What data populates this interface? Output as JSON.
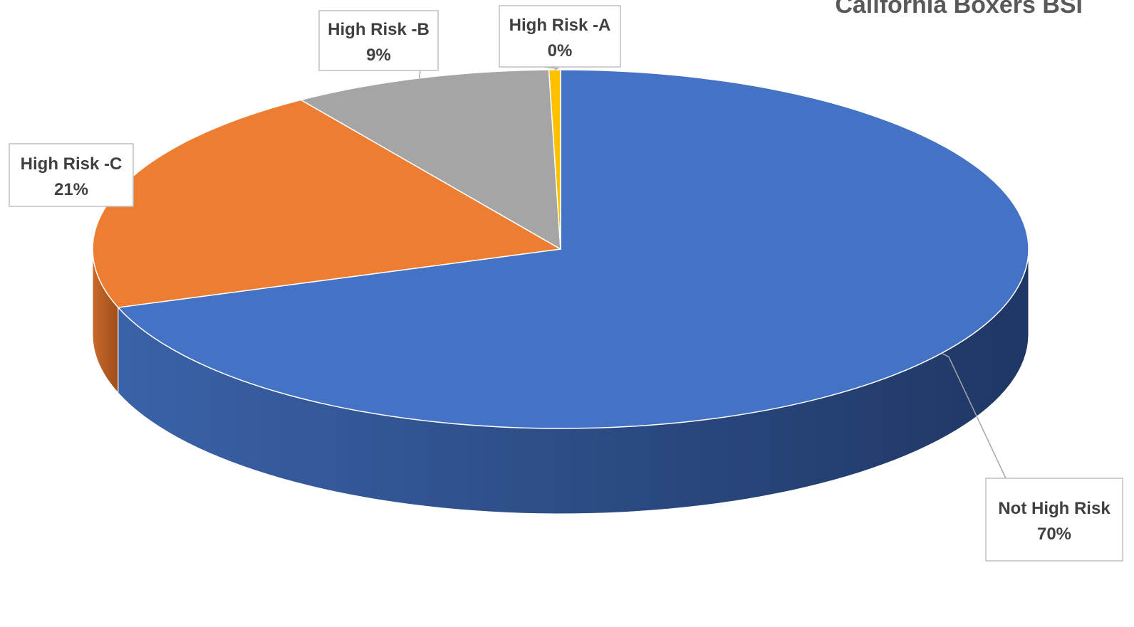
{
  "chart_data": {
    "type": "pie",
    "title": "California Boxers BSI",
    "three_d": true,
    "start_angle_deg": 0,
    "direction": "clockwise",
    "slices": [
      {
        "label": "Not High Risk",
        "value": 70,
        "display": "70%",
        "color": "#4472C4",
        "side_dark": "#1F3764",
        "side_light": "#3A62A8",
        "label_anchor": "bottom-right"
      },
      {
        "label": "High Risk -C",
        "value": 21,
        "display": "21%",
        "color": "#ED7D31",
        "side_dark": "#9E4E1C",
        "side_light": "#C9692A",
        "label_anchor": "left"
      },
      {
        "label": "High Risk -B",
        "value": 9,
        "display": "9%",
        "color": "#A5A5A5",
        "side_dark": "#6E6E6E",
        "side_light": "#8C8C8C",
        "label_anchor": "top-left"
      },
      {
        "label": "High Risk -A",
        "value": 0.4,
        "display": "0%",
        "color": "#FFC000",
        "side_dark": "#A67C00",
        "side_light": "#D9A300",
        "label_anchor": "top"
      }
    ]
  }
}
